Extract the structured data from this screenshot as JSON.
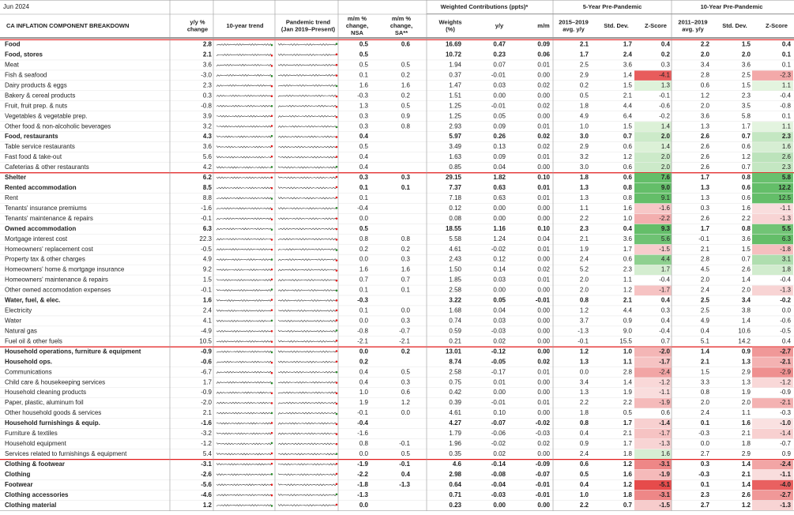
{
  "header": {
    "date": "Jun 2024",
    "group_headers": [
      "Weighted Contributions (ppts)*",
      "5-Year Pre-Pandemic",
      "10-Year Pre-Pandemic"
    ],
    "columns": [
      [
        "CA INFLATION COMPONENT BREAKDOWN"
      ],
      [
        "y/y %",
        "change"
      ],
      [
        "10-year trend"
      ],
      [
        "Pandemic trend",
        "(Jan 2019–Present)"
      ],
      [
        "m/m %",
        "change,",
        "NSA"
      ],
      [
        "m/m %",
        "change,",
        "SA**"
      ],
      [
        "Weights",
        "(%)"
      ],
      [
        "y/y"
      ],
      [
        "m/m"
      ],
      [
        "2015–2019",
        "avg. y/y"
      ],
      [
        "Std. Dev."
      ],
      [
        "Z-Score"
      ],
      [
        "2011–2019",
        "avg. y/y"
      ],
      [
        "Std. Dev."
      ],
      [
        "Z-Score"
      ]
    ]
  },
  "table": {
    "rows": [
      {
        "name": "Food",
        "level": "major",
        "cells": [
          "2.8",
          "0.5",
          "0.6",
          "16.69",
          "0.47",
          "0.09",
          "2.1",
          "1.7",
          "0.4",
          "2.2",
          "1.5",
          "0.4"
        ]
      },
      {
        "name": "Food, stores",
        "level": "sub",
        "cells": [
          "2.1",
          "0.5",
          null,
          "10.72",
          "0.23",
          "0.06",
          "1.7",
          "2.4",
          "0.2",
          "2.0",
          "2.0",
          "0.1"
        ]
      },
      {
        "name": "Meat",
        "level": "item",
        "cells": [
          "3.6",
          "0.5",
          "0.5",
          "1.94",
          "0.07",
          "0.01",
          "2.5",
          "3.6",
          "0.3",
          "3.4",
          "3.6",
          "0.1"
        ]
      },
      {
        "name": "Fish & seafood",
        "level": "item",
        "cells": [
          "-3.0",
          "0.1",
          "0.2",
          "0.37",
          "-0.01",
          "0.00",
          "2.9",
          "1.4",
          "-4.1",
          "2.8",
          "2.5",
          "-2.3"
        ]
      },
      {
        "name": "Dairy products & eggs",
        "level": "item",
        "cells": [
          "2.3",
          "1.6",
          "1.6",
          "1.47",
          "0.03",
          "0.02",
          "0.2",
          "1.5",
          "1.3",
          "0.6",
          "1.5",
          "1.1"
        ]
      },
      {
        "name": "Bakery & cereal products",
        "level": "item",
        "cells": [
          "0.3",
          "-0.3",
          "0.2",
          "1.51",
          "0.00",
          "0.00",
          "0.5",
          "2.1",
          "-0.1",
          "1.2",
          "2.3",
          "-0.4"
        ]
      },
      {
        "name": "Fruit, fruit prep. & nuts",
        "level": "item",
        "cells": [
          "-0.8",
          "1.3",
          "0.5",
          "1.25",
          "-0.01",
          "0.02",
          "1.8",
          "4.4",
          "-0.6",
          "2.0",
          "3.5",
          "-0.8"
        ]
      },
      {
        "name": "Vegetables & vegetable prep.",
        "level": "item",
        "cells": [
          "3.9",
          "0.3",
          "0.9",
          "1.25",
          "0.05",
          "0.00",
          "4.9",
          "6.4",
          "-0.2",
          "3.6",
          "5.8",
          "0.1"
        ]
      },
      {
        "name": "Other food & non-alcoholic beverages",
        "level": "item",
        "cells": [
          "3.2",
          "0.3",
          "0.8",
          "2.93",
          "0.09",
          "0.01",
          "1.0",
          "1.5",
          "1.4",
          "1.3",
          "1.7",
          "1.1"
        ]
      },
      {
        "name": "Food, restaurants",
        "level": "sub",
        "cells": [
          "4.3",
          "0.4",
          null,
          "5.97",
          "0.26",
          "0.02",
          "3.0",
          "0.7",
          "2.0",
          "2.6",
          "0.7",
          "2.3"
        ]
      },
      {
        "name": "Table service restaurants",
        "level": "item",
        "cells": [
          "3.6",
          "0.5",
          null,
          "3.49",
          "0.13",
          "0.02",
          "2.9",
          "0.6",
          "1.4",
          "2.6",
          "0.6",
          "1.6"
        ]
      },
      {
        "name": "Fast food & take-out",
        "level": "item",
        "cells": [
          "5.6",
          "0.4",
          null,
          "1.63",
          "0.09",
          "0.01",
          "3.2",
          "1.2",
          "2.0",
          "2.6",
          "1.2",
          "2.6"
        ]
      },
      {
        "name": "Cafeterias & other restaurants",
        "level": "item",
        "cells": [
          "4.2",
          "0.4",
          null,
          "0.85",
          "0.04",
          "0.00",
          "3.0",
          "0.6",
          "2.0",
          "2.6",
          "0.7",
          "2.3"
        ]
      },
      {
        "name": "Shelter",
        "level": "major",
        "cells": [
          "6.2",
          "0.3",
          "0.3",
          "29.15",
          "1.82",
          "0.10",
          "1.8",
          "0.6",
          "7.6",
          "1.7",
          "0.8",
          "5.8"
        ]
      },
      {
        "name": "Rented accommodation",
        "level": "sub",
        "cells": [
          "8.5",
          "0.1",
          "0.1",
          "7.37",
          "0.63",
          "0.01",
          "1.3",
          "0.8",
          "9.0",
          "1.3",
          "0.6",
          "12.2"
        ]
      },
      {
        "name": "Rent",
        "level": "item",
        "cells": [
          "8.8",
          "0.1",
          null,
          "7.18",
          "0.63",
          "0.01",
          "1.3",
          "0.8",
          "9.1",
          "1.3",
          "0.6",
          "12.5"
        ]
      },
      {
        "name": "Tenants' insurance premiums",
        "level": "item",
        "cells": [
          "-1.6",
          "-0.4",
          null,
          "0.12",
          "0.00",
          "0.00",
          "1.1",
          "1.6",
          "-1.6",
          "0.3",
          "1.6",
          "-1.1"
        ]
      },
      {
        "name": "Tenants' maintenance & repairs",
        "level": "item",
        "cells": [
          "-0.1",
          "0.0",
          null,
          "0.08",
          "0.00",
          "0.00",
          "2.2",
          "1.0",
          "-2.2",
          "2.6",
          "2.2",
          "-1.3"
        ]
      },
      {
        "name": "Owned accommodation",
        "level": "sub",
        "cells": [
          "6.3",
          "0.5",
          null,
          "18.55",
          "1.16",
          "0.10",
          "2.3",
          "0.4",
          "9.3",
          "1.7",
          "0.8",
          "5.5"
        ]
      },
      {
        "name": "Mortgage interest cost",
        "level": "item",
        "cells": [
          "22.3",
          "0.8",
          "0.8",
          "5.58",
          "1.24",
          "0.04",
          "2.1",
          "3.6",
          "5.6",
          "-0.1",
          "3.6",
          "6.3"
        ]
      },
      {
        "name": "Homeowners' replacement cost",
        "level": "item",
        "cells": [
          "-0.5",
          "0.2",
          "0.2",
          "4.61",
          "-0.02",
          "0.01",
          "1.9",
          "1.7",
          "-1.5",
          "2.1",
          "1.5",
          "-1.8"
        ]
      },
      {
        "name": "Property tax & other charges",
        "level": "item",
        "cells": [
          "4.9",
          "0.0",
          "0.3",
          "2.43",
          "0.12",
          "0.00",
          "2.4",
          "0.6",
          "4.4",
          "2.8",
          "0.7",
          "3.1"
        ]
      },
      {
        "name": "Homeowners' home & mortgage insurance",
        "level": "item",
        "cells": [
          "9.2",
          "1.6",
          "1.6",
          "1.50",
          "0.14",
          "0.02",
          "5.2",
          "2.3",
          "1.7",
          "4.5",
          "2.6",
          "1.8"
        ]
      },
      {
        "name": "Homeowners' maintenance & repairs",
        "level": "item",
        "cells": [
          "1.5",
          "0.7",
          "0.7",
          "1.85",
          "0.03",
          "0.01",
          "2.0",
          "1.1",
          "-0.4",
          "2.0",
          "1.4",
          "-0.4"
        ]
      },
      {
        "name": "Other owned accomodation expenses",
        "level": "item",
        "cells": [
          "-0.1",
          "0.1",
          "0.1",
          "2.58",
          "0.00",
          "0.00",
          "2.0",
          "1.2",
          "-1.7",
          "2.4",
          "2.0",
          "-1.3"
        ]
      },
      {
        "name": "Water, fuel, & elec.",
        "level": "sub",
        "cells": [
          "1.6",
          "-0.3",
          null,
          "3.22",
          "0.05",
          "-0.01",
          "0.8",
          "2.1",
          "0.4",
          "2.5",
          "3.4",
          "-0.2"
        ]
      },
      {
        "name": "Electricity",
        "level": "item",
        "cells": [
          "2.4",
          "0.1",
          "0.0",
          "1.68",
          "0.04",
          "0.00",
          "1.2",
          "4.4",
          "0.3",
          "2.5",
          "3.8",
          "0.0"
        ]
      },
      {
        "name": "Water",
        "level": "item",
        "cells": [
          "4.1",
          "0.0",
          "0.3",
          "0.74",
          "0.03",
          "0.00",
          "3.7",
          "0.9",
          "0.4",
          "4.9",
          "1.4",
          "-0.6"
        ]
      },
      {
        "name": "Natural gas",
        "level": "item",
        "cells": [
          "-4.9",
          "-0.8",
          "-0.7",
          "0.59",
          "-0.03",
          "0.00",
          "-1.3",
          "9.0",
          "-0.4",
          "0.4",
          "10.6",
          "-0.5"
        ]
      },
      {
        "name": "Fuel oil & other fuels",
        "level": "item",
        "cells": [
          "10.5",
          "-2.1",
          "-2.1",
          "0.21",
          "0.02",
          "0.00",
          "-0.1",
          "15.5",
          "0.7",
          "5.1",
          "14.2",
          "0.4"
        ]
      },
      {
        "name": "Household operations, furniture & equipment",
        "level": "major",
        "cells": [
          "-0.9",
          "0.0",
          "0.2",
          "13.01",
          "-0.12",
          "0.00",
          "1.2",
          "1.0",
          "-2.0",
          "1.4",
          "0.9",
          "-2.7"
        ]
      },
      {
        "name": "Household ops.",
        "level": "sub",
        "cells": [
          "-0.6",
          "0.2",
          null,
          "8.74",
          "-0.05",
          "0.02",
          "1.3",
          "1.1",
          "-1.7",
          "2.1",
          "1.3",
          "-2.1"
        ]
      },
      {
        "name": "Communications",
        "level": "item",
        "cells": [
          "-6.7",
          "0.4",
          "0.5",
          "2.58",
          "-0.17",
          "0.01",
          "0.0",
          "2.8",
          "-2.4",
          "1.5",
          "2.9",
          "-2.9"
        ]
      },
      {
        "name": "Child care & housekeeping services",
        "level": "item",
        "cells": [
          "1.7",
          "0.4",
          "0.3",
          "0.75",
          "0.01",
          "0.00",
          "3.4",
          "1.4",
          "-1.2",
          "3.3",
          "1.3",
          "-1.2"
        ]
      },
      {
        "name": "Household cleaning products",
        "level": "item",
        "cells": [
          "-0.9",
          "1.0",
          "0.6",
          "0.42",
          "0.00",
          "0.00",
          "1.3",
          "1.9",
          "-1.1",
          "0.8",
          "1.9",
          "-0.9"
        ]
      },
      {
        "name": "Paper, plastic, aluminum foil",
        "level": "item",
        "cells": [
          "-2.0",
          "1.9",
          "1.2",
          "0.39",
          "-0.01",
          "0.01",
          "2.2",
          "2.2",
          "-1.9",
          "2.0",
          "2.0",
          "-2.1"
        ]
      },
      {
        "name": "Other household goods & services",
        "level": "item",
        "cells": [
          "2.1",
          "-0.1",
          "0.0",
          "4.61",
          "0.10",
          "0.00",
          "1.8",
          "0.5",
          "0.6",
          "2.4",
          "1.1",
          "-0.3"
        ]
      },
      {
        "name": "Household furnishings & equip.",
        "level": "sub",
        "cells": [
          "-1.6",
          "-0.4",
          null,
          "4.27",
          "-0.07",
          "-0.02",
          "0.8",
          "1.7",
          "-1.4",
          "0.1",
          "1.6",
          "-1.0"
        ]
      },
      {
        "name": "Furniture & textiles",
        "level": "item",
        "cells": [
          "-3.2",
          "-1.6",
          null,
          "1.79",
          "-0.06",
          "-0.03",
          "0.4",
          "2.1",
          "-1.7",
          "-0.3",
          "2.1",
          "-1.4"
        ]
      },
      {
        "name": "Household equipment",
        "level": "item",
        "cells": [
          "-1.2",
          "0.8",
          "-0.1",
          "1.96",
          "-0.02",
          "0.02",
          "0.9",
          "1.7",
          "-1.3",
          "0.0",
          "1.8",
          "-0.7"
        ]
      },
      {
        "name": "Services related to furnishings & equipment",
        "level": "item",
        "cells": [
          "5.4",
          "0.0",
          "0.5",
          "0.35",
          "0.02",
          "0.00",
          "2.4",
          "1.8",
          "1.6",
          "2.7",
          "2.9",
          "0.9"
        ]
      },
      {
        "name": "Clothing & footwear",
        "level": "major",
        "cells": [
          "-3.1",
          "-1.9",
          "-0.1",
          "4.6",
          "-0.14",
          "-0.09",
          "0.6",
          "1.2",
          "-3.1",
          "0.3",
          "1.4",
          "-2.4"
        ]
      },
      {
        "name": "Clothing",
        "level": "sub",
        "cells": [
          "-2.6",
          "-2.2",
          "0.4",
          "2.98",
          "-0.08",
          "-0.07",
          "0.5",
          "1.6",
          "-1.9",
          "-0.3",
          "2.1",
          "-1.1"
        ]
      },
      {
        "name": "Footwear",
        "level": "sub",
        "cells": [
          "-5.6",
          "-1.8",
          "-1.3",
          "0.64",
          "-0.04",
          "-0.01",
          "0.4",
          "1.2",
          "-5.1",
          "0.1",
          "1.4",
          "-4.0"
        ]
      },
      {
        "name": "Clothing accessories",
        "level": "sub",
        "cells": [
          "-4.6",
          "-1.3",
          null,
          "0.71",
          "-0.03",
          "-0.01",
          "1.0",
          "1.8",
          "-3.1",
          "2.3",
          "2.6",
          "-2.7"
        ]
      },
      {
        "name": "Clothing material",
        "level": "sub",
        "cells": [
          "1.2",
          "0.0",
          null,
          "0.23",
          "0.00",
          "0.00",
          "2.2",
          "0.7",
          "-1.5",
          "2.7",
          "1.2",
          "-1.3"
        ]
      }
    ]
  }
}
